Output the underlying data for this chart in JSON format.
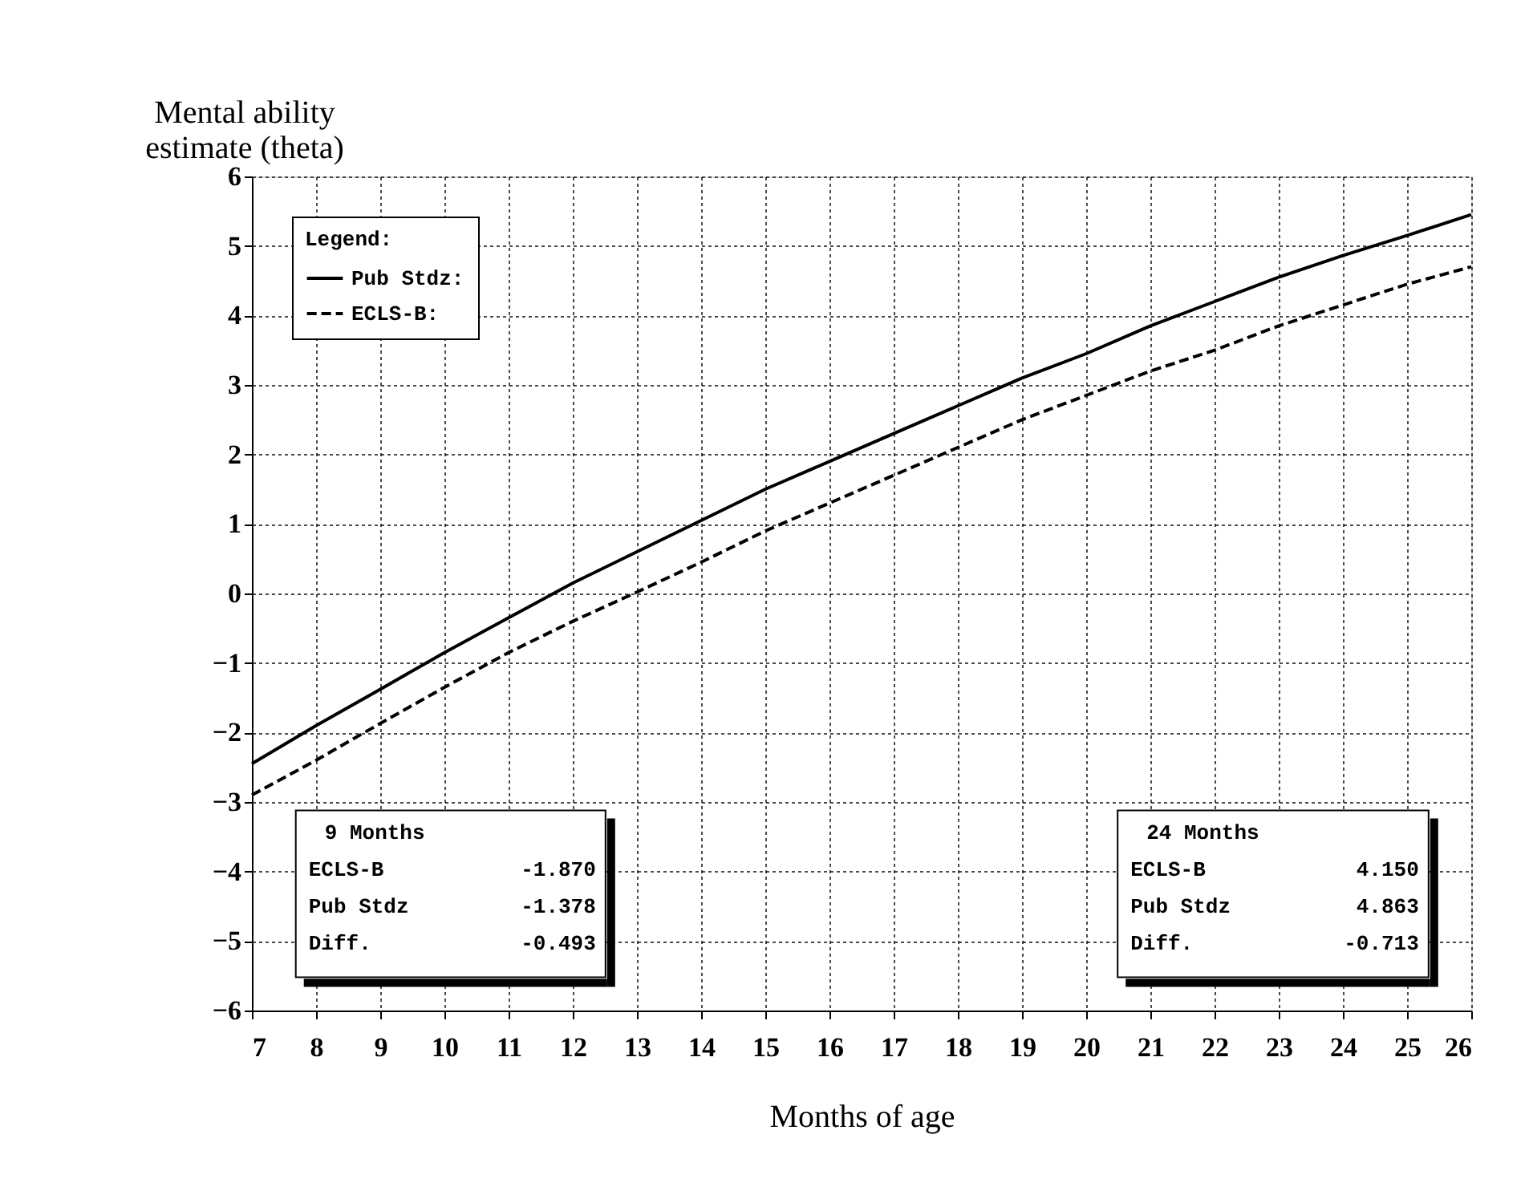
{
  "chart_data": {
    "type": "line",
    "xlabel": "Months of age",
    "ylabel": "Mental ability\nestimate (theta)",
    "x": [
      7,
      8,
      9,
      10,
      11,
      12,
      13,
      14,
      15,
      16,
      17,
      18,
      19,
      20,
      21,
      22,
      23,
      24,
      25,
      26
    ],
    "series": [
      {
        "name": "Pub Stdz:",
        "color": "#000000",
        "line_style": "solid",
        "values": [
          -2.45,
          -1.9,
          -1.378,
          -0.85,
          -0.35,
          0.15,
          0.6,
          1.05,
          1.5,
          1.9,
          2.3,
          2.7,
          3.1,
          3.45,
          3.85,
          4.2,
          4.55,
          4.863,
          5.15,
          5.45
        ]
      },
      {
        "name": "ECLS-B:",
        "color": "#000000",
        "line_style": "dashed",
        "values": [
          -2.9,
          -2.4,
          -1.87,
          -1.35,
          -0.85,
          -0.4,
          0.02,
          0.45,
          0.9,
          1.3,
          1.7,
          2.1,
          2.5,
          2.85,
          3.2,
          3.5,
          3.85,
          4.15,
          4.45,
          4.7
        ]
      }
    ],
    "xlim": [
      7,
      26
    ],
    "xticks": [
      7,
      8,
      9,
      10,
      11,
      12,
      13,
      14,
      15,
      16,
      17,
      18,
      19,
      20,
      21,
      22,
      23,
      24,
      25,
      26
    ],
    "ylim": [
      -6,
      6
    ],
    "yticks": [
      -6,
      -5,
      -4,
      -3,
      -2,
      -1,
      0,
      1,
      2,
      3,
      4,
      5,
      6
    ],
    "grid": true,
    "legend": "top left",
    "legend_title": "Legend:",
    "annotations": [
      "9 Months\nECLS-B      -1.870\nPub Stdz    -1.378\nDiff.       -0.493",
      "24 Months\nECLS-B       4.150\nPub Stdz     4.863\nDiff.       -0.713"
    ]
  }
}
